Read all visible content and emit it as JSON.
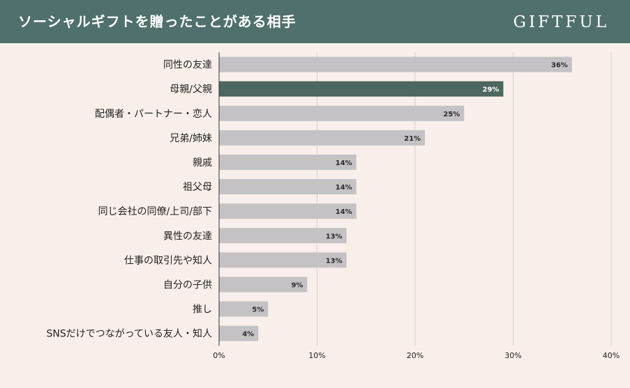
{
  "header": {
    "title": "ソーシャルギフトを贈ったことがある相手",
    "brand": "GIFTFUL"
  },
  "colors": {
    "header_bg": "#4f706c",
    "bar_default": "#c4c2c5",
    "bar_highlight": "#4d665f",
    "background": "#f9efea"
  },
  "chart_data": {
    "type": "bar",
    "orientation": "horizontal",
    "title": "ソーシャルギフトを贈ったことがある相手",
    "categories": [
      "同性の友達",
      "母親/父親",
      "配偶者・パートナー・恋人",
      "兄弟/姉妹",
      "親戚",
      "祖父母",
      "同じ会社の同僚/上司/部下",
      "異性の友達",
      "仕事の取引先や知人",
      "自分の子供",
      "推し",
      "SNSだけでつながっている友人・知人"
    ],
    "values": [
      36,
      29,
      25,
      21,
      14,
      14,
      14,
      13,
      13,
      9,
      5,
      4
    ],
    "value_labels": [
      "36%",
      "29%",
      "25%",
      "21%",
      "14%",
      "14%",
      "14%",
      "13%",
      "13%",
      "9%",
      "5%",
      "4%"
    ],
    "highlight_index": 1,
    "xlim": [
      0,
      40
    ],
    "xticks": [
      0,
      10,
      20,
      30,
      40
    ],
    "xtick_labels": [
      "0%",
      "10%",
      "20%",
      "30%",
      "40%"
    ],
    "grid": true,
    "xlabel": "",
    "ylabel": ""
  }
}
